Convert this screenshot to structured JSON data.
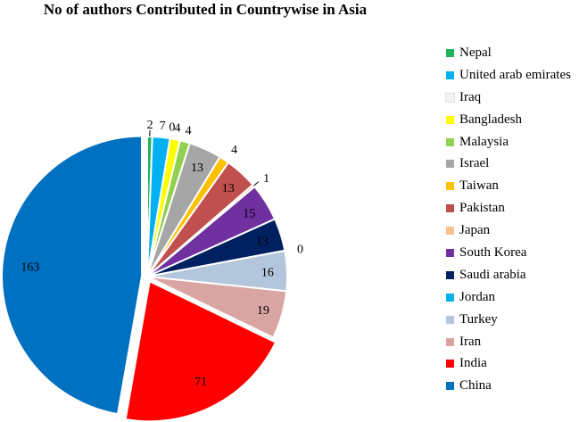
{
  "chart_data": {
    "type": "pie",
    "title": "No of authors Contributed in Countrywise in Asia",
    "legend_position": "right",
    "slices": [
      {
        "label": "Nepal",
        "value": 2,
        "color": "#1eb35a"
      },
      {
        "label": "United arab emirates",
        "value": 7,
        "color": "#00b0f0"
      },
      {
        "label": "Iraq",
        "value": 0,
        "color": "#f2f2f2"
      },
      {
        "label": "Bangladesh",
        "value": 4,
        "color": "#ffff00"
      },
      {
        "label": "Malaysia",
        "value": 4,
        "color": "#92d050"
      },
      {
        "label": "Israel",
        "value": 13,
        "color": "#a6a6a6"
      },
      {
        "label": "Taiwan",
        "value": 4,
        "color": "#ffc000"
      },
      {
        "label": "Pakistan",
        "value": 13,
        "color": "#c0504d"
      },
      {
        "label": "Japan",
        "value": 1,
        "color": "#fac090"
      },
      {
        "label": "South Korea",
        "value": 15,
        "color": "#7030a0"
      },
      {
        "label": "Saudi arabia",
        "value": 13,
        "color": "#002060"
      },
      {
        "label": "Jordan",
        "value": 0,
        "color": "#00b0f0"
      },
      {
        "label": "Turkey",
        "value": 16,
        "color": "#b4c6dc"
      },
      {
        "label": "Iran",
        "value": 19,
        "color": "#d9a5a3"
      },
      {
        "label": "India",
        "value": 71,
        "color": "#ff0000"
      },
      {
        "label": "China",
        "value": 163,
        "color": "#0070c0"
      }
    ]
  }
}
